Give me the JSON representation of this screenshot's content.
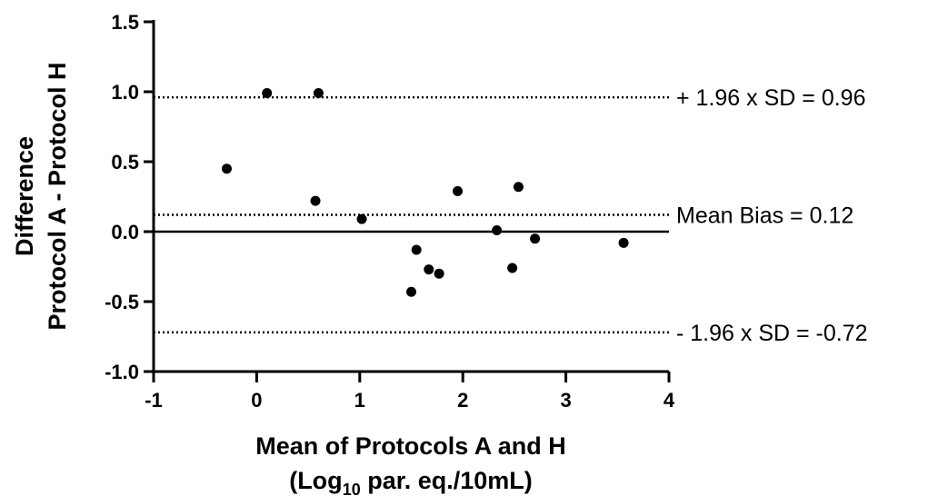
{
  "chart_data": {
    "type": "scatter",
    "xlabel_line1": "Mean of Protocols A and  H",
    "xlabel_line2_prefix": "(Log",
    "xlabel_line2_sub": "10",
    "xlabel_line2_suffix": " par. eq./10mL)",
    "ylabel_line1": "Difference",
    "ylabel_line2": "Protocol A - Protocol H",
    "xlim": [
      -1,
      4
    ],
    "ylim": [
      -1.0,
      1.5
    ],
    "x_ticks": [
      -1,
      0,
      1,
      2,
      3,
      4
    ],
    "x_tick_labels": [
      "-1",
      "0",
      "1",
      "2",
      "3",
      "4"
    ],
    "y_ticks": [
      -1.0,
      -0.5,
      0.0,
      0.5,
      1.0,
      1.5
    ],
    "y_tick_labels": [
      "-1.0",
      "-0.5",
      "0.0",
      "0.5",
      "1.0",
      "1.5"
    ],
    "zero_line": 0.0,
    "reference_lines": [
      {
        "y": 0.96,
        "label": "+ 1.96 x SD = 0.96",
        "style": "dotted"
      },
      {
        "y": 0.12,
        "label": "Mean Bias = 0.12",
        "style": "dotted"
      },
      {
        "y": -0.72,
        "label": "- 1.96 x SD = -0.72",
        "style": "dotted"
      }
    ],
    "points": [
      {
        "x": -0.29,
        "y": 0.45
      },
      {
        "x": 0.1,
        "y": 0.99
      },
      {
        "x": 0.6,
        "y": 0.99
      },
      {
        "x": 0.57,
        "y": 0.22
      },
      {
        "x": 1.02,
        "y": 0.09
      },
      {
        "x": 1.5,
        "y": -0.43
      },
      {
        "x": 1.55,
        "y": -0.13
      },
      {
        "x": 1.67,
        "y": -0.27
      },
      {
        "x": 1.77,
        "y": -0.3
      },
      {
        "x": 1.95,
        "y": 0.29
      },
      {
        "x": 2.33,
        "y": 0.01
      },
      {
        "x": 2.48,
        "y": -0.26
      },
      {
        "x": 2.54,
        "y": 0.32
      },
      {
        "x": 2.7,
        "y": -0.05
      },
      {
        "x": 3.56,
        "y": -0.08
      }
    ],
    "grid": false,
    "legend": "none",
    "colors": {
      "points": "#000000",
      "axes": "#000000",
      "lines": "#000000"
    }
  }
}
